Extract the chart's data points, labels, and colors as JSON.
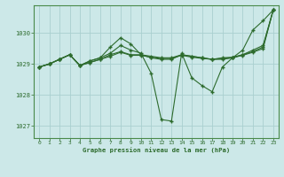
{
  "title": "Graphe pression niveau de la mer (hPa)",
  "bg_color": "#cce8e8",
  "grid_color": "#aad0d0",
  "line_color": "#2d6b2d",
  "xlim": [
    -0.5,
    23.5
  ],
  "ylim": [
    1026.6,
    1030.9
  ],
  "yticks": [
    1027,
    1028,
    1029,
    1030
  ],
  "xticks": [
    0,
    1,
    2,
    3,
    4,
    5,
    6,
    7,
    8,
    9,
    10,
    11,
    12,
    13,
    14,
    15,
    16,
    17,
    18,
    19,
    20,
    21,
    22,
    23
  ],
  "s1": [
    1028.9,
    1029.0,
    1029.15,
    1029.3,
    1028.95,
    1029.1,
    1029.2,
    1029.35,
    1029.6,
    1029.45,
    1029.35,
    1028.7,
    1027.2,
    1027.15,
    1029.35,
    1028.55,
    1028.3,
    1028.1,
    1028.9,
    1029.2,
    1029.45,
    1030.1,
    1030.4,
    1030.75
  ],
  "s2": [
    1028.9,
    1029.0,
    1029.15,
    1029.3,
    1028.95,
    1029.1,
    1029.2,
    1029.55,
    1029.85,
    1029.65,
    1029.3,
    1029.2,
    1029.15,
    1029.15,
    1029.3,
    1029.25,
    1029.2,
    1029.15,
    1029.15,
    1029.2,
    1029.3,
    1029.45,
    1029.6,
    1030.75
  ],
  "s3": [
    1028.9,
    1029.0,
    1029.15,
    1029.3,
    1028.95,
    1029.05,
    1029.15,
    1029.3,
    1029.4,
    1029.3,
    1029.3,
    1029.25,
    1029.2,
    1029.2,
    1029.3,
    1029.25,
    1029.2,
    1029.15,
    1029.2,
    1029.22,
    1029.3,
    1029.4,
    1029.55,
    1030.75
  ],
  "s4": [
    1028.9,
    1029.0,
    1029.15,
    1029.3,
    1028.95,
    1029.05,
    1029.15,
    1029.25,
    1029.38,
    1029.28,
    1029.28,
    1029.22,
    1029.18,
    1029.18,
    1029.28,
    1029.22,
    1029.18,
    1029.15,
    1029.18,
    1029.2,
    1029.28,
    1029.38,
    1029.5,
    1030.75
  ]
}
